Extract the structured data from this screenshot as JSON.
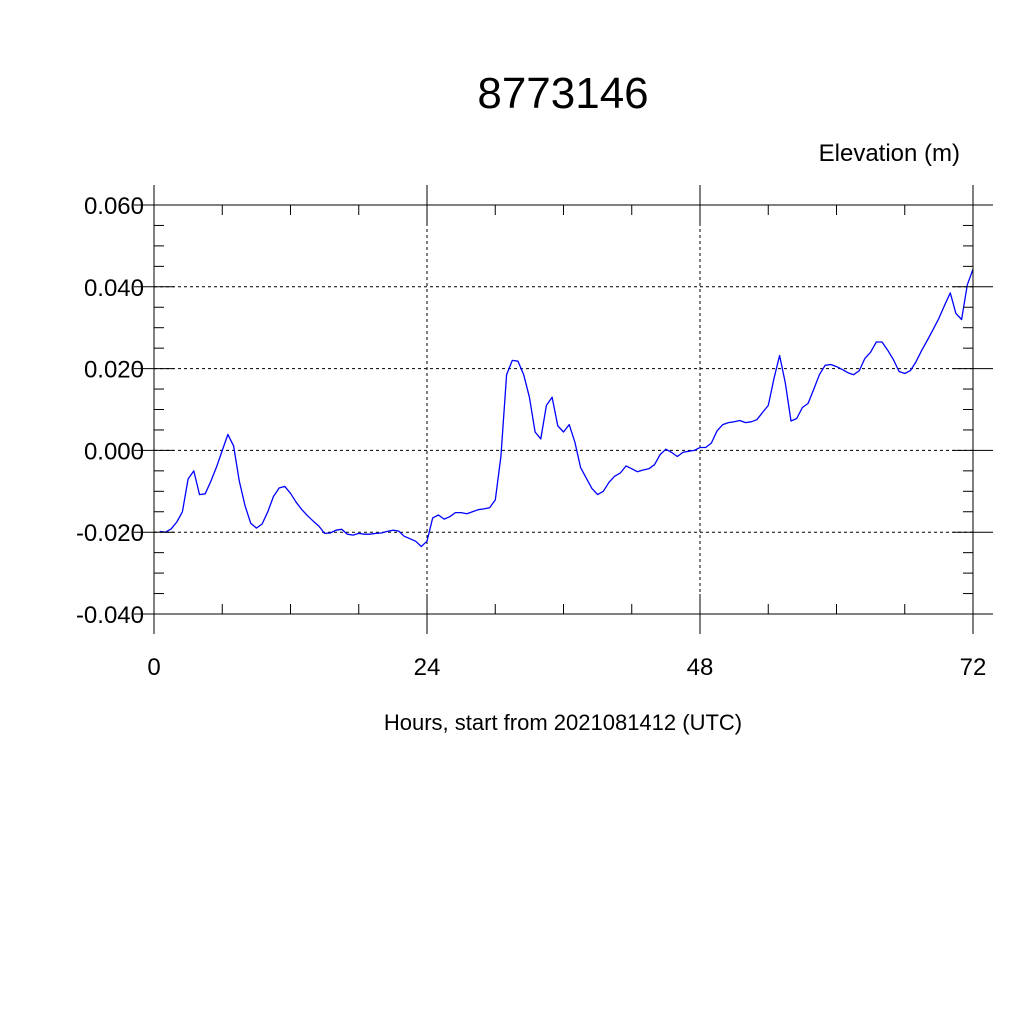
{
  "chart_data": {
    "type": "line",
    "title": "8773146",
    "ylabel": "Elevation (m)",
    "xlabel": "Hours, start from 2021081412 (UTC)",
    "xlim": [
      0,
      72
    ],
    "ylim": [
      -0.04,
      0.06
    ],
    "x_ticks": [
      0,
      24,
      48,
      72
    ],
    "x_tick_labels": [
      "0",
      "24",
      "48",
      "72"
    ],
    "y_ticks": [
      -0.04,
      -0.02,
      0.0,
      0.02,
      0.04,
      0.06
    ],
    "y_tick_labels": [
      "-0.040",
      "-0.020",
      "0.000",
      "0.020",
      "0.040",
      "0.060"
    ],
    "grid": true,
    "series": [
      {
        "color": "#0000ff",
        "x": [
          0.5,
          1,
          1.5,
          2,
          2.5,
          3,
          3.5,
          4,
          4.5,
          5,
          5.5,
          6,
          6.5,
          7,
          7.5,
          8,
          8.5,
          9,
          9.5,
          10,
          10.5,
          11,
          11.5,
          12,
          12.5,
          13,
          13.5,
          14,
          14.5,
          15,
          15.5,
          16,
          16.5,
          17,
          17.5,
          18,
          18.5,
          19,
          19.5,
          20,
          20.5,
          21,
          21.5,
          22,
          22.5,
          23,
          23.5,
          24,
          24.5,
          25,
          25.5,
          26,
          26.5,
          27,
          27.5,
          28,
          28.5,
          29,
          29.5,
          30,
          30.5,
          31,
          31.5,
          32,
          32.5,
          33,
          33.5,
          34,
          34.5,
          35,
          35.5,
          36,
          36.5,
          37,
          37.5,
          38,
          38.5,
          39,
          39.5,
          40,
          40.5,
          41,
          41.5,
          42,
          42.5,
          43,
          43.5,
          44,
          44.5,
          45,
          45.5,
          46,
          46.5,
          47,
          47.5,
          48,
          48.5,
          49,
          49.5,
          50,
          50.5,
          51,
          51.5,
          52,
          52.5,
          53,
          53.5,
          54,
          54.5,
          55,
          55.5,
          56,
          56.5,
          57,
          57.5,
          58,
          58.5,
          59,
          59.5,
          60,
          60.5,
          61,
          61.5,
          62,
          62.5,
          63,
          63.5,
          64,
          64.5,
          65,
          65.5,
          66,
          66.5,
          67,
          67.5,
          68,
          68.5,
          69,
          69.5,
          70,
          70.5,
          71,
          71.5,
          72
        ],
        "y": [
          -0.0198,
          -0.02,
          -0.0192,
          -0.0175,
          -0.015,
          -0.007,
          -0.005,
          -0.0108,
          -0.0106,
          -0.0075,
          -0.004,
          0,
          0.0039,
          0.0011,
          -0.0075,
          -0.0135,
          -0.0178,
          -0.019,
          -0.018,
          -0.015,
          -0.0113,
          -0.0092,
          -0.0088,
          -0.0105,
          -0.0127,
          -0.0145,
          -0.016,
          -0.0173,
          -0.0185,
          -0.0203,
          -0.0202,
          -0.0195,
          -0.0193,
          -0.0205,
          -0.0207,
          -0.0203,
          -0.0205,
          -0.0205,
          -0.0203,
          -0.0202,
          -0.0198,
          -0.0195,
          -0.0197,
          -0.021,
          -0.0216,
          -0.0222,
          -0.0235,
          -0.0222,
          -0.0165,
          -0.0158,
          -0.0168,
          -0.0162,
          -0.0152,
          -0.0152,
          -0.0155,
          -0.015,
          -0.0145,
          -0.0143,
          -0.014,
          -0.0121,
          -0.0015,
          0.0185,
          0.022,
          0.0218,
          0.0185,
          0.013,
          0.0045,
          0.0028,
          0.011,
          0.013,
          0.006,
          0.0045,
          0.0063,
          0.002,
          -0.0042,
          -0.0068,
          -0.0093,
          -0.0108,
          -0.01,
          -0.0078,
          -0.0063,
          -0.0055,
          -0.0038,
          -0.0045,
          -0.0052,
          -0.0048,
          -0.0045,
          -0.0035,
          -0.001,
          0.0003,
          -0.0005,
          -0.0015,
          -0.0005,
          -0.0002,
          0,
          0.0007,
          0.0007,
          0.0018,
          0.0048,
          0.0063,
          0.0068,
          0.007,
          0.0073,
          0.0068,
          0.007,
          0.0075,
          0.0093,
          0.011,
          0.0175,
          0.0232,
          0.0165,
          0.0072,
          0.0078,
          0.0105,
          0.0115,
          0.015,
          0.0185,
          0.0208,
          0.021,
          0.0205,
          0.0198,
          0.019,
          0.0185,
          0.0195,
          0.0225,
          0.024,
          0.0265,
          0.0265,
          0.0245,
          0.0222,
          0.0193,
          0.0188,
          0.0195,
          0.0217,
          0.0245,
          0.027,
          0.0296,
          0.0323,
          0.0355,
          0.0385,
          0.0335,
          0.032,
          0.0405,
          0.0443
        ]
      }
    ]
  }
}
